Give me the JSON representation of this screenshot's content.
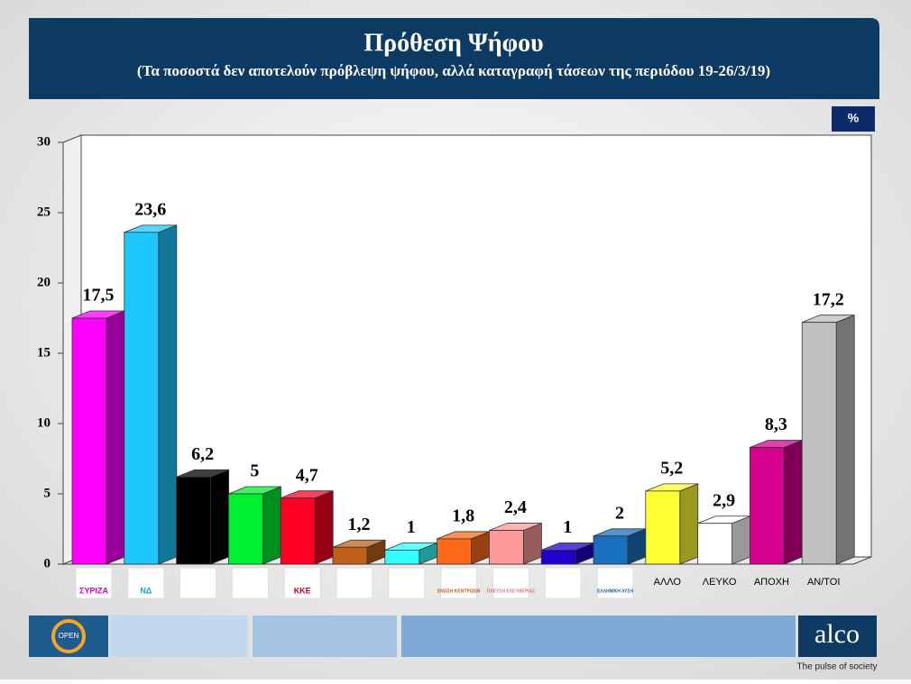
{
  "chart_data": {
    "type": "bar3d",
    "title": "Πρόθεση Ψήφου",
    "subtitle": "(Τα ποσοστά δεν αποτελούν πρόβλεψη ψήφου, αλλά καταγραφή τάσεων της περιόδου 19-26/3/19)",
    "unit_badge": "%",
    "categories": [
      "ΣΥΡΙΖΑ",
      "ΝΔ",
      null,
      null,
      "ΚΚΕ",
      null,
      null,
      "ΕΝΩΣΗ ΚΕΝΤΡΩΩΝ",
      "ΠΛΕΥΣΗ ΕΛΕΥΘΕΡΙΑΣ",
      null,
      "ΕΛΛΗΝΙΚΗ ΛΥΣΗ",
      "ΑΛΛΟ",
      "ΛΕΥΚΟ",
      "ΑΠΟΧΗ",
      "ΑΝ/ΤΟΙ"
    ],
    "values": [
      17.5,
      23.6,
      6.2,
      5,
      4.7,
      1.2,
      1,
      1.8,
      2.4,
      1,
      2,
      5.2,
      2.9,
      8.3,
      17.2
    ],
    "value_labels": [
      "17,5",
      "23,6",
      "6,2",
      "5",
      "4,7",
      "1,2",
      "1",
      "1,8",
      "2,4",
      "1",
      "2",
      "5,2",
      "2,9",
      "8,3",
      "17,2"
    ],
    "colors": [
      "#ff00ff",
      "#1ec8ff",
      "#000000",
      "#00f030",
      "#ff0022",
      "#c0611a",
      "#33ffff",
      "#ff6a1a",
      "#ff9999",
      "#2200cc",
      "#1b6fbf",
      "#ffff33",
      "#ffffff",
      "#d6008f",
      "#c0c0c0"
    ],
    "ylim": [
      0,
      30
    ],
    "yticks": [
      0,
      5,
      10,
      15,
      20,
      25,
      30
    ],
    "grid": false
  },
  "footer": {
    "left_logo": "OPEN",
    "brand": "alco",
    "tagline": "The pulse of society"
  }
}
